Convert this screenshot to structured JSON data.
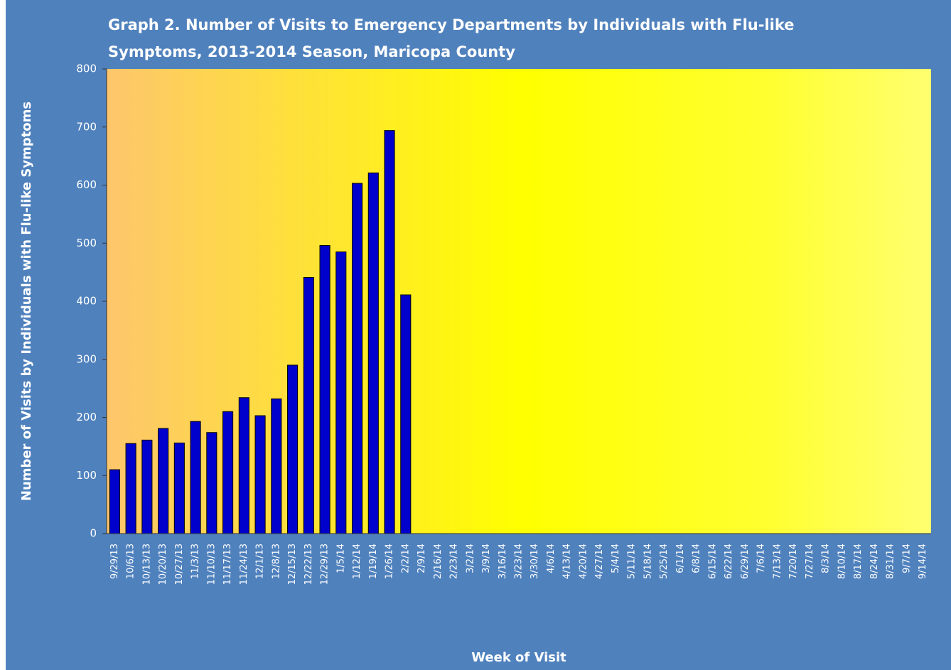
{
  "chart_data": {
    "type": "bar",
    "title": [
      "Graph 2. Number of Visits to Emergency Departments by Individuals with Flu-like",
      "Symptoms, 2013-2014 Season, Maricopa County"
    ],
    "x_label": "Week of Visit",
    "y_label": "Number of Visits by Individuals with Flu-like Symptoms",
    "categories": [
      "9/29/13",
      "10/6/13",
      "10/13/13",
      "10/20/13",
      "10/27/13",
      "11/3/13",
      "11/10/13",
      "11/17/13",
      "11/24/13",
      "12/1/13",
      "12/8/13",
      "12/15/13",
      "12/22/13",
      "12/29/13",
      "1/5/14",
      "1/12/14",
      "1/19/14",
      "1/26/14",
      "2/2/14",
      "2/9/14",
      "2/16/14",
      "2/23/14",
      "3/2/14",
      "3/9/14",
      "3/16/14",
      "3/23/14",
      "3/30/14",
      "4/6/14",
      "4/13/14",
      "4/20/14",
      "4/27/14",
      "5/4/14",
      "5/11/14",
      "5/18/14",
      "5/25/14",
      "6/1/14",
      "6/8/14",
      "6/15/14",
      "6/22/14",
      "6/29/14",
      "7/6/14",
      "7/13/14",
      "7/20/14",
      "7/27/14",
      "8/3/14",
      "8/10/14",
      "8/17/14",
      "8/24/14",
      "8/31/14",
      "9/7/14",
      "9/14/14"
    ],
    "values": [
      110,
      155,
      161,
      181,
      156,
      193,
      174,
      210,
      234,
      203,
      232,
      290,
      441,
      496,
      485,
      603,
      621,
      694,
      411,
      null,
      null,
      null,
      null,
      null,
      null,
      null,
      null,
      null,
      null,
      null,
      null,
      null,
      null,
      null,
      null,
      null,
      null,
      null,
      null,
      null,
      null,
      null,
      null,
      null,
      null,
      null,
      null,
      null,
      null,
      null,
      null
    ],
    "color": "#0000cc",
    "ylim": [
      0,
      800
    ],
    "yticks": [
      0,
      100,
      200,
      300,
      400,
      500,
      600,
      700,
      800
    ],
    "grid": false
  }
}
